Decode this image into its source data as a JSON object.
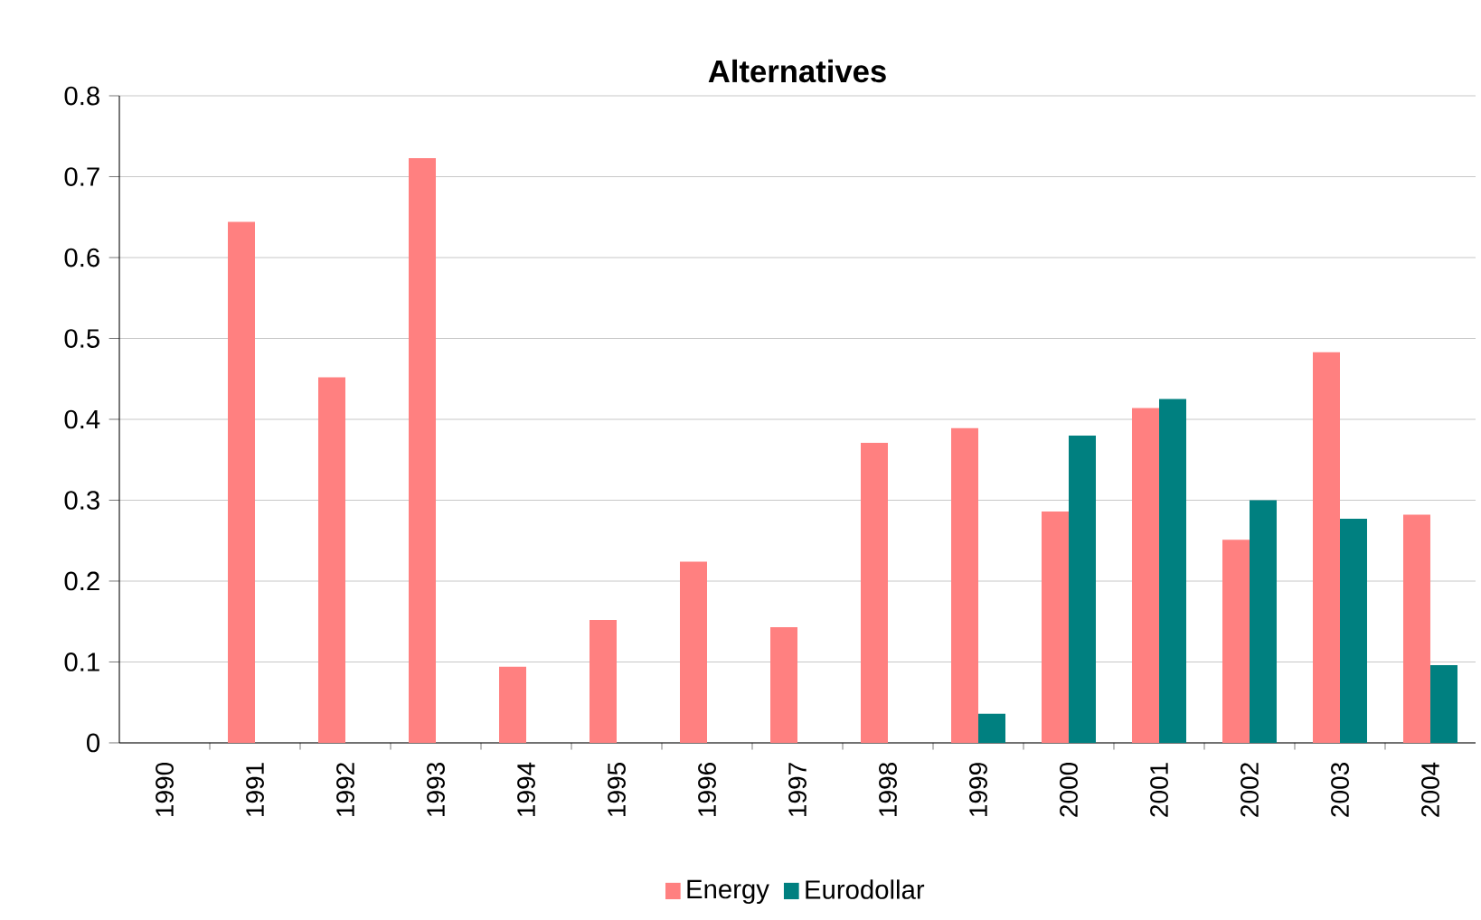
{
  "chart_data": {
    "type": "bar",
    "title": "Alternatives",
    "categories": [
      "1990",
      "1991",
      "1992",
      "1993",
      "1994",
      "1995",
      "1996",
      "1997",
      "1998",
      "1999",
      "2000",
      "2001",
      "2002",
      "2003",
      "2004"
    ],
    "series": [
      {
        "name": "Energy",
        "color": "#ff8080",
        "values": [
          null,
          0.644,
          0.452,
          0.723,
          0.094,
          0.152,
          0.224,
          0.143,
          0.371,
          0.389,
          0.286,
          0.414,
          0.251,
          0.483,
          0.282
        ]
      },
      {
        "name": "Eurodollar",
        "color": "#008080",
        "values": [
          null,
          null,
          null,
          null,
          null,
          null,
          null,
          null,
          null,
          0.036,
          0.38,
          0.425,
          0.3,
          0.277,
          0.096
        ]
      }
    ],
    "ylim": [
      0,
      0.8
    ],
    "yticks": [
      0,
      0.1,
      0.2,
      0.3,
      0.4,
      0.5,
      0.6,
      0.7,
      0.8
    ],
    "grid": "y",
    "legend": "bottom"
  }
}
